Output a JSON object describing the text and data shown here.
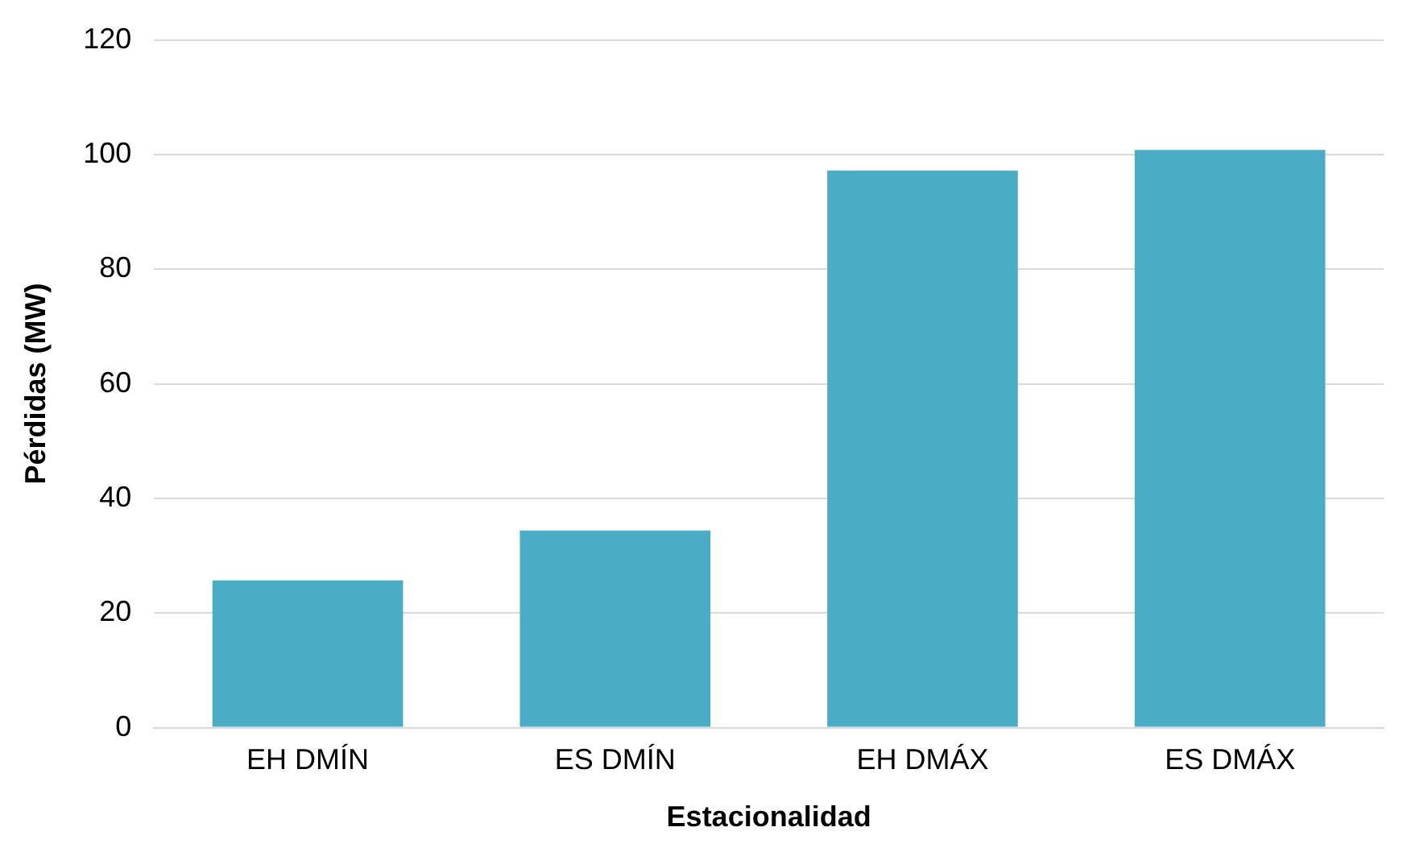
{
  "chart_data": {
    "type": "bar",
    "xlabel": "Estacionalidad",
    "ylabel": "Pérdidas (MW)",
    "categories": [
      "EH DMÍN",
      "ES DMÍN",
      "EH DMÁX",
      "ES DMÁX"
    ],
    "values": [
      25.7,
      34.4,
      97.2,
      100.8
    ],
    "color": "#4bacc6",
    "ylim": [
      0,
      120
    ],
    "yticks": [
      0,
      20,
      40,
      60,
      80,
      100,
      120
    ],
    "grid": "y",
    "legend": false
  }
}
